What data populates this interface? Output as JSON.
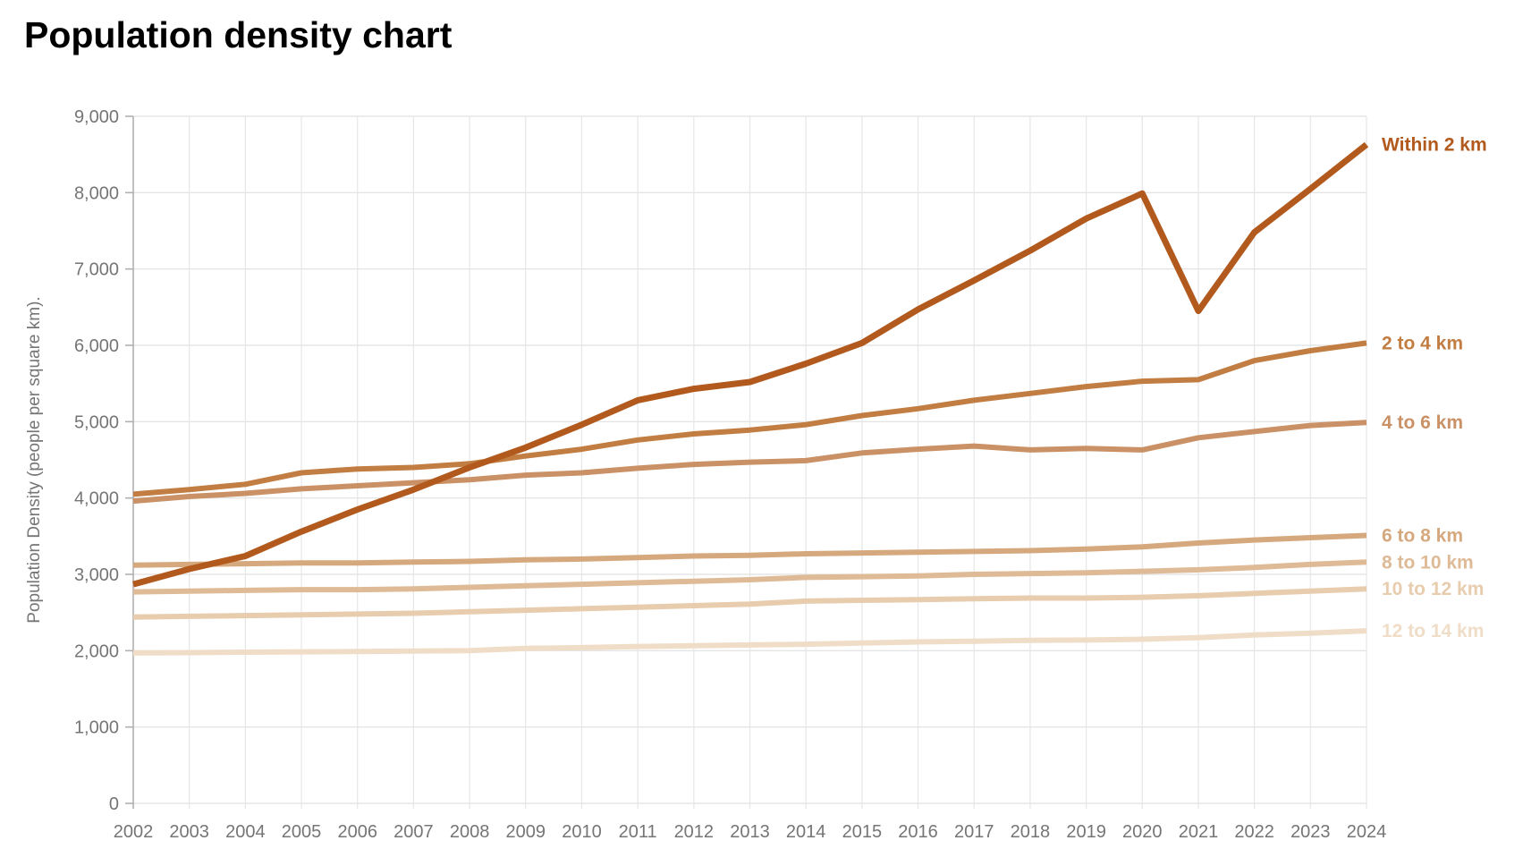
{
  "page": {
    "title": "Population density chart"
  },
  "colors": {
    "axis_text": "#757575",
    "grid": "#e6e6e6",
    "grid_horizontal": "#e0e0e0",
    "axis_line": "#b0b0b0",
    "title_text": "#000000"
  },
  "chart_data": {
    "type": "line",
    "title": "Population density chart",
    "xlabel": "",
    "ylabel": "Population Density (people per square km).",
    "ylim": [
      0,
      9000
    ],
    "ytick_step": 1000,
    "ytick_labels": [
      "0",
      "1,000",
      "2,000",
      "3,000",
      "4,000",
      "5,000",
      "6,000",
      "7,000",
      "8,000",
      "9,000"
    ],
    "grid": true,
    "legend_position": "right-end-labels",
    "x": [
      2002,
      2003,
      2004,
      2005,
      2006,
      2007,
      2008,
      2009,
      2010,
      2011,
      2012,
      2013,
      2014,
      2015,
      2016,
      2017,
      2018,
      2019,
      2020,
      2021,
      2022,
      2023,
      2024
    ],
    "x_labels": [
      "2002",
      "2003",
      "2004",
      "2005",
      "2006",
      "2007",
      "2008",
      "2009",
      "2010",
      "2011",
      "2012",
      "2013",
      "2014",
      "2015",
      "2016",
      "2017",
      "2018",
      "2019",
      "2020",
      "2021",
      "2022",
      "2023",
      "2024"
    ],
    "series": [
      {
        "name": "Within 2 km",
        "color": "#b25a1d",
        "stroke_width": 7,
        "values": [
          2870,
          3070,
          3240,
          3560,
          3850,
          4110,
          4400,
          4660,
          4960,
          5280,
          5430,
          5520,
          5760,
          6030,
          6470,
          6850,
          7240,
          7660,
          7990,
          6450,
          7480,
          8050,
          8630
        ]
      },
      {
        "name": "2 to 4 km",
        "color": "#c17d42",
        "stroke_width": 6,
        "values": [
          4050,
          4110,
          4180,
          4330,
          4380,
          4400,
          4450,
          4550,
          4640,
          4760,
          4840,
          4890,
          4960,
          5080,
          5170,
          5280,
          5370,
          5460,
          5530,
          5550,
          5800,
          5930,
          6030
        ]
      },
      {
        "name": "4 to 6 km",
        "color": "#ca9166",
        "stroke_width": 6,
        "values": [
          3960,
          4020,
          4060,
          4120,
          4160,
          4200,
          4240,
          4300,
          4330,
          4390,
          4440,
          4470,
          4490,
          4590,
          4640,
          4680,
          4630,
          4650,
          4630,
          4790,
          4870,
          4950,
          4990
        ]
      },
      {
        "name": "6 to 8 km",
        "color": "#d5a87e",
        "stroke_width": 6,
        "values": [
          3120,
          3130,
          3140,
          3150,
          3150,
          3160,
          3170,
          3190,
          3200,
          3220,
          3240,
          3250,
          3270,
          3280,
          3290,
          3300,
          3310,
          3330,
          3360,
          3410,
          3450,
          3480,
          3510
        ]
      },
      {
        "name": "8 to 10 km",
        "color": "#deba96",
        "stroke_width": 6,
        "values": [
          2770,
          2780,
          2790,
          2800,
          2800,
          2810,
          2830,
          2850,
          2870,
          2890,
          2910,
          2930,
          2960,
          2970,
          2980,
          3000,
          3010,
          3020,
          3040,
          3060,
          3090,
          3130,
          3160
        ]
      },
      {
        "name": "10 to 12 km",
        "color": "#e7ccae",
        "stroke_width": 6,
        "values": [
          2440,
          2450,
          2460,
          2470,
          2480,
          2490,
          2510,
          2530,
          2550,
          2570,
          2590,
          2610,
          2650,
          2660,
          2670,
          2680,
          2690,
          2690,
          2700,
          2720,
          2750,
          2780,
          2810
        ]
      },
      {
        "name": "12 to 14 km",
        "color": "#f0ddc7",
        "stroke_width": 6,
        "values": [
          1970,
          1975,
          1980,
          1985,
          1990,
          1995,
          2000,
          2030,
          2040,
          2055,
          2065,
          2075,
          2085,
          2100,
          2115,
          2125,
          2135,
          2140,
          2150,
          2170,
          2205,
          2230,
          2260
        ]
      }
    ]
  }
}
